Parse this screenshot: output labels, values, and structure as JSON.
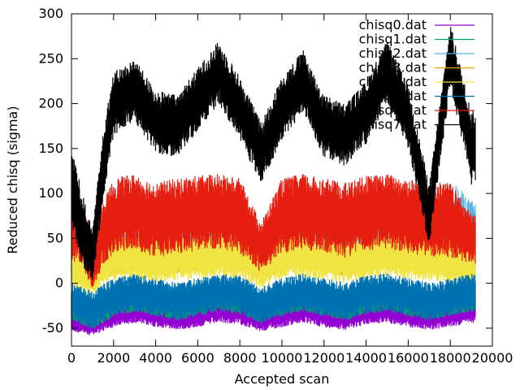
{
  "chart_data": {
    "type": "line",
    "title": "",
    "xlabel": "Accepted scan",
    "ylabel": "Reduced chisq (sigma)",
    "xlim": [
      0,
      20000
    ],
    "ylim": [
      -70,
      300
    ],
    "x_ticks": [
      0,
      2000,
      4000,
      6000,
      8000,
      10000,
      12000,
      14000,
      16000,
      18000,
      20000
    ],
    "y_ticks": [
      -50,
      0,
      50,
      100,
      150,
      200,
      250,
      300
    ],
    "grid": false,
    "legend_position": "top-right",
    "x_sample": [
      0,
      500,
      1000,
      1500,
      2000,
      3000,
      4000,
      5000,
      6000,
      7000,
      8000,
      9000,
      10000,
      11000,
      12000,
      13000,
      14000,
      15000,
      16000,
      17000,
      18000,
      19000
    ],
    "series": [
      {
        "name": "chisq0.dat",
        "color": "#9400d3",
        "center": [
          -40,
          -42,
          -45,
          -40,
          -35,
          -30,
          -35,
          -38,
          -35,
          -30,
          -32,
          -40,
          -35,
          -30,
          -35,
          -38,
          -32,
          -30,
          -35,
          -38,
          -35,
          -30
        ],
        "spread": [
          10,
          10,
          10,
          10,
          10,
          10,
          10,
          10,
          10,
          10,
          10,
          10,
          10,
          10,
          10,
          10,
          10,
          10,
          10,
          10,
          10,
          10
        ]
      },
      {
        "name": "chisq1.dat",
        "color": "#009e73",
        "center": [
          -25,
          -30,
          -35,
          -28,
          -20,
          -15,
          -20,
          -25,
          -20,
          -15,
          -18,
          -28,
          -20,
          -15,
          -20,
          -25,
          -18,
          -15,
          -20,
          -25,
          -20,
          -15
        ],
        "spread": [
          12,
          12,
          12,
          12,
          12,
          12,
          12,
          12,
          12,
          12,
          12,
          12,
          12,
          12,
          12,
          12,
          12,
          12,
          12,
          12,
          12,
          12
        ]
      },
      {
        "name": "chisq2.dat",
        "color": "#56b4e9",
        "center": [
          25,
          20,
          15,
          28,
          35,
          40,
          35,
          38,
          40,
          45,
          42,
          30,
          40,
          45,
          40,
          35,
          42,
          45,
          40,
          38,
          60,
          50
        ],
        "spread": [
          15,
          15,
          15,
          15,
          15,
          15,
          15,
          15,
          15,
          15,
          15,
          15,
          15,
          15,
          15,
          15,
          15,
          15,
          15,
          15,
          40,
          30
        ]
      },
      {
        "name": "chisq3.dat",
        "color": "#e69f00",
        "center": [
          18,
          15,
          10,
          20,
          25,
          30,
          25,
          28,
          30,
          32,
          30,
          20,
          30,
          32,
          30,
          25,
          30,
          32,
          30,
          28,
          25,
          20
        ],
        "spread": [
          12,
          12,
          12,
          12,
          12,
          12,
          12,
          12,
          12,
          12,
          12,
          12,
          12,
          12,
          12,
          12,
          12,
          12,
          12,
          12,
          12,
          12
        ]
      },
      {
        "name": "chisq4.dat",
        "color": "#f0e442",
        "center": [
          20,
          15,
          10,
          22,
          28,
          30,
          25,
          28,
          30,
          32,
          30,
          20,
          30,
          32,
          28,
          25,
          30,
          32,
          30,
          28,
          25,
          20
        ],
        "spread": [
          18,
          18,
          18,
          18,
          18,
          18,
          18,
          18,
          18,
          18,
          18,
          18,
          18,
          18,
          18,
          18,
          18,
          18,
          18,
          18,
          18,
          18
        ]
      },
      {
        "name": "chisq5.dat",
        "color": "#0072b2",
        "center": [
          -20,
          -25,
          -30,
          -22,
          -15,
          -10,
          -15,
          -20,
          -15,
          -10,
          -12,
          -25,
          -15,
          -10,
          -15,
          -20,
          -12,
          -10,
          -15,
          -20,
          -15,
          -10
        ],
        "spread": [
          15,
          15,
          15,
          15,
          15,
          15,
          15,
          15,
          15,
          15,
          15,
          15,
          15,
          15,
          15,
          15,
          15,
          15,
          15,
          15,
          15,
          15
        ]
      },
      {
        "name": "chisq6.dat",
        "color": "#e51e10",
        "center": [
          60,
          55,
          20,
          55,
          75,
          80,
          70,
          75,
          78,
          80,
          75,
          40,
          75,
          80,
          75,
          70,
          78,
          80,
          75,
          72,
          70,
          50
        ],
        "spread": [
          25,
          25,
          20,
          25,
          30,
          30,
          30,
          30,
          30,
          30,
          30,
          20,
          30,
          30,
          30,
          30,
          30,
          30,
          30,
          30,
          30,
          20
        ]
      },
      {
        "name": "chisq7.dat",
        "color": "#000000",
        "center": [
          110,
          60,
          30,
          130,
          200,
          215,
          180,
          175,
          205,
          235,
          195,
          145,
          195,
          225,
          175,
          165,
          190,
          235,
          185,
          75,
          255,
          150
        ],
        "spread": [
          30,
          30,
          20,
          30,
          25,
          25,
          25,
          25,
          25,
          25,
          25,
          25,
          25,
          25,
          25,
          25,
          25,
          25,
          25,
          25,
          25,
          30
        ]
      }
    ]
  }
}
